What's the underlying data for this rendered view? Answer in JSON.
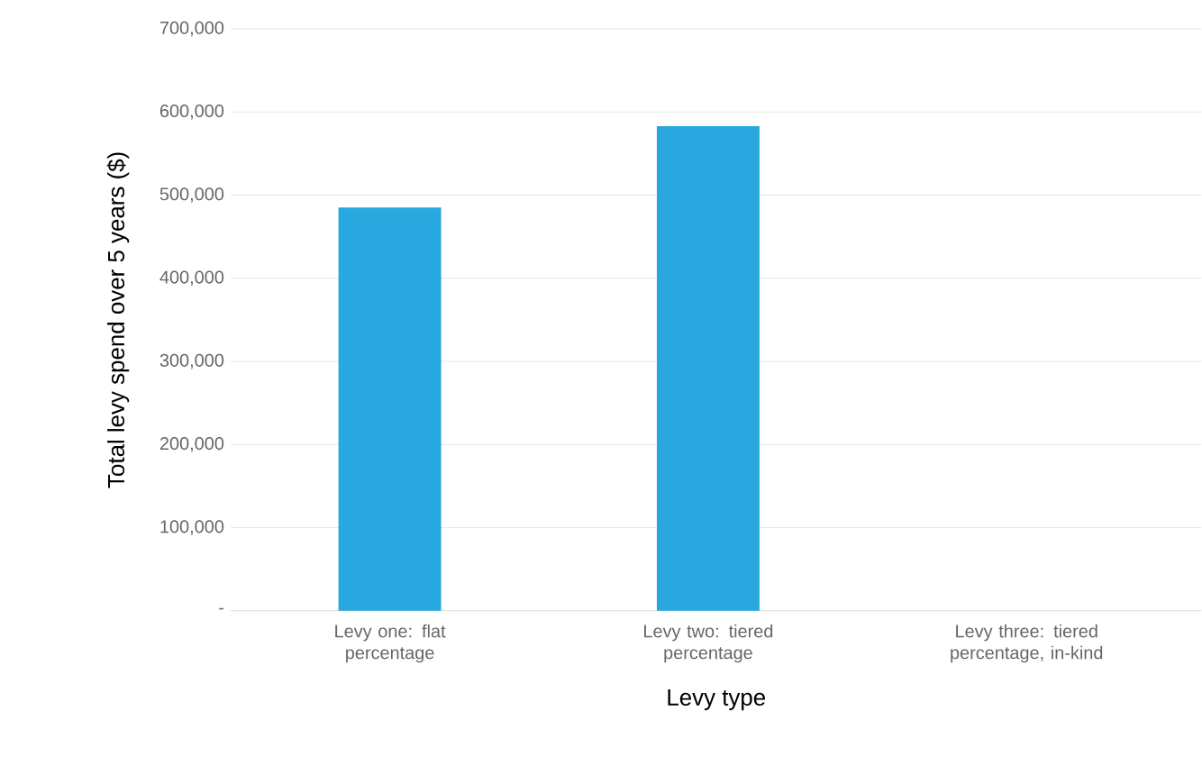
{
  "chart_data": {
    "type": "bar",
    "xlabel": "Levy type",
    "ylabel": "Total levy spend over 5 years ($)",
    "categories": [
      "Levy one: flat percentage",
      "Levy two: tiered percentage",
      "Levy three: tiered percentage, in-kind"
    ],
    "values": [
      485000,
      583000,
      null
    ],
    "color": "#29a8e0",
    "ylim": [
      0,
      700000
    ],
    "yticks": [
      {
        "value": 0,
        "label": "-"
      },
      {
        "value": 100000,
        "label": "100,000"
      },
      {
        "value": 200000,
        "label": "200,000"
      },
      {
        "value": 300000,
        "label": "300,000"
      },
      {
        "value": 400000,
        "label": "400,000"
      },
      {
        "value": 500000,
        "label": "500,000"
      },
      {
        "value": 600000,
        "label": "600,000"
      },
      {
        "value": 700000,
        "label": "700,000"
      }
    ],
    "grid": "y"
  }
}
